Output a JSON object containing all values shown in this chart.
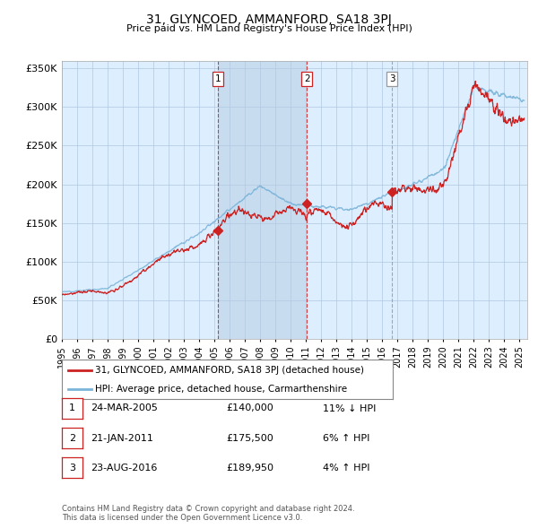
{
  "title": "31, GLYNCOED, AMMANFORD, SA18 3PJ",
  "subtitle": "Price paid vs. HM Land Registry's House Price Index (HPI)",
  "ylabel_ticks": [
    "£0",
    "£50K",
    "£100K",
    "£150K",
    "£200K",
    "£250K",
    "£300K",
    "£350K"
  ],
  "ytick_values": [
    0,
    50000,
    100000,
    150000,
    200000,
    250000,
    300000,
    350000
  ],
  "ylim": [
    0,
    360000
  ],
  "xlim_start": 1995.0,
  "xlim_end": 2025.5,
  "hpi_color": "#7ab4d8",
  "price_color": "#cc2222",
  "transaction_color": "#cc2222",
  "vline_color_red": "#cc2222",
  "vline_color_grey": "#999999",
  "chart_bg": "#ddeeff",
  "shade_bg": "#c8dcf0",
  "legend_label_price": "31, GLYNCOED, AMMANFORD, SA18 3PJ (detached house)",
  "legend_label_hpi": "HPI: Average price, detached house, Carmarthenshire",
  "transactions": [
    {
      "num": 1,
      "date_x": 2005.22,
      "price": 140000,
      "label": "1",
      "date_str": "24-MAR-2005",
      "price_str": "£140,000",
      "rel": "11% ↓ HPI",
      "vline_style": "red"
    },
    {
      "num": 2,
      "date_x": 2011.05,
      "price": 175500,
      "label": "2",
      "date_str": "21-JAN-2011",
      "price_str": "£175,500",
      "rel": "6% ↑ HPI",
      "vline_style": "red"
    },
    {
      "num": 3,
      "date_x": 2016.64,
      "price": 189950,
      "label": "3",
      "date_str": "23-AUG-2016",
      "price_str": "£189,950",
      "rel": "4% ↑ HPI",
      "vline_style": "grey"
    }
  ],
  "footnote1": "Contains HM Land Registry data © Crown copyright and database right 2024.",
  "footnote2": "This data is licensed under the Open Government Licence v3.0.",
  "background_color": "#ffffff",
  "grid_color": "#b0c8e0"
}
